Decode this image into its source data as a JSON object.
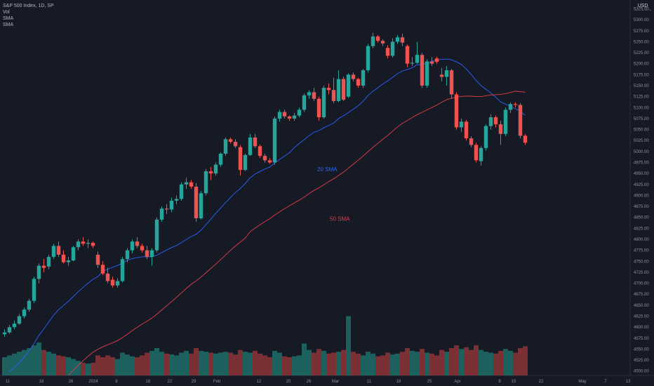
{
  "legend": {
    "title": "S&P 500 Index, 1D, SP",
    "indicators": [
      "Vol",
      "SMA",
      "SMA"
    ]
  },
  "currency": "USD",
  "colors": {
    "up": "#26a69a",
    "down": "#ef5350",
    "vol_up": "#1e6f68",
    "vol_down": "#8c3538",
    "sma20": "#2962ff",
    "sma50": "#e53c4a"
  },
  "chart_data": {
    "type": "candlestick",
    "y_ticks": [
      4500,
      4525,
      4550,
      4575,
      4600,
      4625,
      4650,
      4675,
      4700,
      4725,
      4750,
      4775,
      4800,
      4825,
      4850,
      4875,
      4900,
      4925,
      4950,
      4975,
      5000,
      5025,
      5050,
      5075,
      5100,
      5125,
      5150,
      5175,
      5200,
      5225,
      5250,
      5275,
      5300,
      5325
    ],
    "y_range": [
      4490,
      5345
    ],
    "x_tick_labels": [
      "11",
      "18",
      "26",
      "2024",
      "8",
      "16",
      "22",
      "29",
      "Feb",
      "12",
      "20",
      "26",
      "Mar",
      "11",
      "18",
      "25",
      "Apr",
      "8",
      "15",
      "22",
      "May",
      "7",
      "13"
    ],
    "annotations": [
      {
        "text": "20 SMA",
        "color": "#2962ff",
        "price": 4955
      },
      {
        "text": "50 SMA",
        "color": "#e53c4a",
        "price": 4842
      }
    ],
    "candles": [
      {
        "o": 4584,
        "h": 4595,
        "l": 4578,
        "c": 4588,
        "v": 0.2
      },
      {
        "o": 4588,
        "h": 4605,
        "l": 4585,
        "c": 4600,
        "v": 0.22
      },
      {
        "o": 4600,
        "h": 4615,
        "l": 4595,
        "c": 4608,
        "v": 0.24
      },
      {
        "o": 4608,
        "h": 4630,
        "l": 4605,
        "c": 4625,
        "v": 0.26
      },
      {
        "o": 4625,
        "h": 4645,
        "l": 4620,
        "c": 4640,
        "v": 0.28
      },
      {
        "o": 4640,
        "h": 4665,
        "l": 4635,
        "c": 4660,
        "v": 0.3
      },
      {
        "o": 4660,
        "h": 4715,
        "l": 4655,
        "c": 4710,
        "v": 0.33
      },
      {
        "o": 4710,
        "h": 4745,
        "l": 4700,
        "c": 4740,
        "v": 0.36
      },
      {
        "o": 4740,
        "h": 4755,
        "l": 4725,
        "c": 4735,
        "v": 0.28
      },
      {
        "o": 4738,
        "h": 4765,
        "l": 4732,
        "c": 4760,
        "v": 0.26
      },
      {
        "o": 4760,
        "h": 4790,
        "l": 4755,
        "c": 4785,
        "v": 0.24
      },
      {
        "o": 4785,
        "h": 4795,
        "l": 4760,
        "c": 4765,
        "v": 0.22
      },
      {
        "o": 4765,
        "h": 4775,
        "l": 4745,
        "c": 4748,
        "v": 0.21
      },
      {
        "o": 4748,
        "h": 4760,
        "l": 4740,
        "c": 4752,
        "v": 0.2
      },
      {
        "o": 4752,
        "h": 4785,
        "l": 4750,
        "c": 4782,
        "v": 0.18
      },
      {
        "o": 4782,
        "h": 4800,
        "l": 4775,
        "c": 4795,
        "v": 0.16
      },
      {
        "o": 4795,
        "h": 4805,
        "l": 4785,
        "c": 4790,
        "v": 0.14
      },
      {
        "o": 4790,
        "h": 4800,
        "l": 4780,
        "c": 4792,
        "v": 0.13
      },
      {
        "o": 4792,
        "h": 4795,
        "l": 4780,
        "c": 4785,
        "v": 0.14
      },
      {
        "o": 4765,
        "h": 4772,
        "l": 4735,
        "c": 4742,
        "v": 0.22
      },
      {
        "o": 4742,
        "h": 4750,
        "l": 4718,
        "c": 4722,
        "v": 0.2
      },
      {
        "o": 4722,
        "h": 4735,
        "l": 4700,
        "c": 4705,
        "v": 0.22
      },
      {
        "o": 4708,
        "h": 4715,
        "l": 4690,
        "c": 4695,
        "v": 0.2
      },
      {
        "o": 4695,
        "h": 4712,
        "l": 4690,
        "c": 4705,
        "v": 0.18
      },
      {
        "o": 4705,
        "h": 4760,
        "l": 4702,
        "c": 4755,
        "v": 0.25
      },
      {
        "o": 4755,
        "h": 4780,
        "l": 4748,
        "c": 4775,
        "v": 0.23
      },
      {
        "o": 4775,
        "h": 4800,
        "l": 4768,
        "c": 4795,
        "v": 0.21
      },
      {
        "o": 4795,
        "h": 4805,
        "l": 4780,
        "c": 4785,
        "v": 0.2
      },
      {
        "o": 4785,
        "h": 4790,
        "l": 4770,
        "c": 4775,
        "v": 0.22
      },
      {
        "o": 4775,
        "h": 4785,
        "l": 4755,
        "c": 4760,
        "v": 0.25
      },
      {
        "o": 4760,
        "h": 4780,
        "l": 4740,
        "c": 4775,
        "v": 0.27
      },
      {
        "o": 4775,
        "h": 4850,
        "l": 4770,
        "c": 4845,
        "v": 0.3
      },
      {
        "o": 4845,
        "h": 4875,
        "l": 4840,
        "c": 4870,
        "v": 0.26
      },
      {
        "o": 4870,
        "h": 4880,
        "l": 4858,
        "c": 4868,
        "v": 0.24
      },
      {
        "o": 4868,
        "h": 4895,
        "l": 4862,
        "c": 4888,
        "v": 0.23
      },
      {
        "o": 4888,
        "h": 4900,
        "l": 4880,
        "c": 4892,
        "v": 0.22
      },
      {
        "o": 4892,
        "h": 4930,
        "l": 4888,
        "c": 4925,
        "v": 0.25
      },
      {
        "o": 4925,
        "h": 4940,
        "l": 4915,
        "c": 4930,
        "v": 0.27
      },
      {
        "o": 4930,
        "h": 4935,
        "l": 4915,
        "c": 4920,
        "v": 0.24
      },
      {
        "o": 4920,
        "h": 4928,
        "l": 4840,
        "c": 4848,
        "v": 0.3
      },
      {
        "o": 4848,
        "h": 4910,
        "l": 4845,
        "c": 4905,
        "v": 0.27
      },
      {
        "o": 4905,
        "h": 4960,
        "l": 4900,
        "c": 4955,
        "v": 0.26
      },
      {
        "o": 4955,
        "h": 4965,
        "l": 4935,
        "c": 4950,
        "v": 0.25
      },
      {
        "o": 4950,
        "h": 4975,
        "l": 4945,
        "c": 4970,
        "v": 0.24
      },
      {
        "o": 4970,
        "h": 4998,
        "l": 4965,
        "c": 4995,
        "v": 0.25
      },
      {
        "o": 4995,
        "h": 5032,
        "l": 4990,
        "c": 5028,
        "v": 0.26
      },
      {
        "o": 5028,
        "h": 5032,
        "l": 5018,
        "c": 5022,
        "v": 0.25
      },
      {
        "o": 5022,
        "h": 5028,
        "l": 5008,
        "c": 5012,
        "v": 0.23
      },
      {
        "o": 5010,
        "h": 5015,
        "l": 4945,
        "c": 4958,
        "v": 0.28
      },
      {
        "o": 4958,
        "h": 4995,
        "l": 4955,
        "c": 4992,
        "v": 0.26
      },
      {
        "o": 4992,
        "h": 5040,
        "l": 4990,
        "c": 5032,
        "v": 0.25
      },
      {
        "o": 5032,
        "h": 5040,
        "l": 5008,
        "c": 5012,
        "v": 0.27
      },
      {
        "o": 5012,
        "h": 5016,
        "l": 4985,
        "c": 4990,
        "v": 0.24
      },
      {
        "o": 4990,
        "h": 4995,
        "l": 4975,
        "c": 4980,
        "v": 0.22
      },
      {
        "o": 4980,
        "h": 4985,
        "l": 4972,
        "c": 4975,
        "v": 0.2
      },
      {
        "o": 4975,
        "h": 5080,
        "l": 4970,
        "c": 5075,
        "v": 0.27
      },
      {
        "o": 5075,
        "h": 5095,
        "l": 5068,
        "c": 5090,
        "v": 0.25
      },
      {
        "o": 5090,
        "h": 5095,
        "l": 5075,
        "c": 5080,
        "v": 0.21
      },
      {
        "o": 5080,
        "h": 5082,
        "l": 5070,
        "c": 5075,
        "v": 0.2
      },
      {
        "o": 5075,
        "h": 5088,
        "l": 5070,
        "c": 5082,
        "v": 0.21
      },
      {
        "o": 5082,
        "h": 5100,
        "l": 5078,
        "c": 5095,
        "v": 0.22
      },
      {
        "o": 5095,
        "h": 5132,
        "l": 5090,
        "c": 5128,
        "v": 0.35
      },
      {
        "o": 5128,
        "h": 5140,
        "l": 5120,
        "c": 5135,
        "v": 0.28
      },
      {
        "o": 5135,
        "h": 5145,
        "l": 5115,
        "c": 5120,
        "v": 0.25
      },
      {
        "o": 5120,
        "h": 5125,
        "l": 5070,
        "c": 5078,
        "v": 0.29
      },
      {
        "o": 5078,
        "h": 5150,
        "l": 5075,
        "c": 5145,
        "v": 0.27
      },
      {
        "o": 5145,
        "h": 5155,
        "l": 5130,
        "c": 5140,
        "v": 0.24
      },
      {
        "o": 5140,
        "h": 5168,
        "l": 5110,
        "c": 5115,
        "v": 0.25
      },
      {
        "o": 5115,
        "h": 5185,
        "l": 5112,
        "c": 5165,
        "v": 0.26
      },
      {
        "o": 5165,
        "h": 5170,
        "l": 5115,
        "c": 5118,
        "v": 0.28
      },
      {
        "o": 5125,
        "h": 5178,
        "l": 5122,
        "c": 5175,
        "v": 0.65
      },
      {
        "o": 5175,
        "h": 5180,
        "l": 5160,
        "c": 5165,
        "v": 0.26
      },
      {
        "o": 5165,
        "h": 5168,
        "l": 5145,
        "c": 5150,
        "v": 0.24
      },
      {
        "o": 5150,
        "h": 5188,
        "l": 5145,
        "c": 5185,
        "v": 0.22
      },
      {
        "o": 5185,
        "h": 5245,
        "l": 5180,
        "c": 5240,
        "v": 0.26
      },
      {
        "o": 5240,
        "h": 5270,
        "l": 5235,
        "c": 5262,
        "v": 0.24
      },
      {
        "o": 5262,
        "h": 5265,
        "l": 5248,
        "c": 5252,
        "v": 0.21
      },
      {
        "o": 5252,
        "h": 5256,
        "l": 5240,
        "c": 5246,
        "v": 0.22
      },
      {
        "o": 5236,
        "h": 5242,
        "l": 5212,
        "c": 5218,
        "v": 0.25
      },
      {
        "o": 5218,
        "h": 5258,
        "l": 5214,
        "c": 5250,
        "v": 0.23
      },
      {
        "o": 5250,
        "h": 5265,
        "l": 5245,
        "c": 5260,
        "v": 0.24
      },
      {
        "o": 5260,
        "h": 5268,
        "l": 5240,
        "c": 5248,
        "v": 0.26
      },
      {
        "o": 5240,
        "h": 5244,
        "l": 5192,
        "c": 5200,
        "v": 0.3
      },
      {
        "o": 5200,
        "h": 5215,
        "l": 5195,
        "c": 5202,
        "v": 0.27
      },
      {
        "o": 5202,
        "h": 5250,
        "l": 5200,
        "c": 5220,
        "v": 0.26
      },
      {
        "o": 5220,
        "h": 5225,
        "l": 5145,
        "c": 5150,
        "v": 0.29
      },
      {
        "o": 5150,
        "h": 5210,
        "l": 5145,
        "c": 5205,
        "v": 0.25
      },
      {
        "o": 5205,
        "h": 5215,
        "l": 5195,
        "c": 5200,
        "v": 0.24
      },
      {
        "o": 5212,
        "h": 5216,
        "l": 5200,
        "c": 5204,
        "v": 0.22
      },
      {
        "o": 5175,
        "h": 5190,
        "l": 5160,
        "c": 5170,
        "v": 0.28
      },
      {
        "o": 5170,
        "h": 5195,
        "l": 5150,
        "c": 5185,
        "v": 0.26
      },
      {
        "o": 5185,
        "h": 5188,
        "l": 5120,
        "c": 5130,
        "v": 0.3
      },
      {
        "o": 5130,
        "h": 5135,
        "l": 5050,
        "c": 5055,
        "v": 0.33
      },
      {
        "o": 5055,
        "h": 5075,
        "l": 5045,
        "c": 5068,
        "v": 0.29
      },
      {
        "o": 5068,
        "h": 5072,
        "l": 5025,
        "c": 5030,
        "v": 0.31
      },
      {
        "o": 5030,
        "h": 5035,
        "l": 5010,
        "c": 5015,
        "v": 0.28
      },
      {
        "o": 5015,
        "h": 5020,
        "l": 4975,
        "c": 4980,
        "v": 0.33
      },
      {
        "o": 4978,
        "h": 5012,
        "l": 4968,
        "c": 5008,
        "v": 0.28
      },
      {
        "o": 5008,
        "h": 5062,
        "l": 5002,
        "c": 5058,
        "v": 0.26
      },
      {
        "o": 5058,
        "h": 5085,
        "l": 5050,
        "c": 5078,
        "v": 0.25
      },
      {
        "o": 5078,
        "h": 5082,
        "l": 5055,
        "c": 5062,
        "v": 0.24
      },
      {
        "o": 5062,
        "h": 5070,
        "l": 5015,
        "c": 5040,
        "v": 0.27
      },
      {
        "o": 5040,
        "h": 5100,
        "l": 5035,
        "c": 5095,
        "v": 0.29
      },
      {
        "o": 5095,
        "h": 5112,
        "l": 5088,
        "c": 5108,
        "v": 0.27
      },
      {
        "o": 5108,
        "h": 5112,
        "l": 5100,
        "c": 5106,
        "v": 0.25
      },
      {
        "o": 5106,
        "h": 5110,
        "l": 5030,
        "c": 5036,
        "v": 0.3
      },
      {
        "o": 5036,
        "h": 5040,
        "l": 5015,
        "c": 5020,
        "v": 0.32
      }
    ]
  }
}
